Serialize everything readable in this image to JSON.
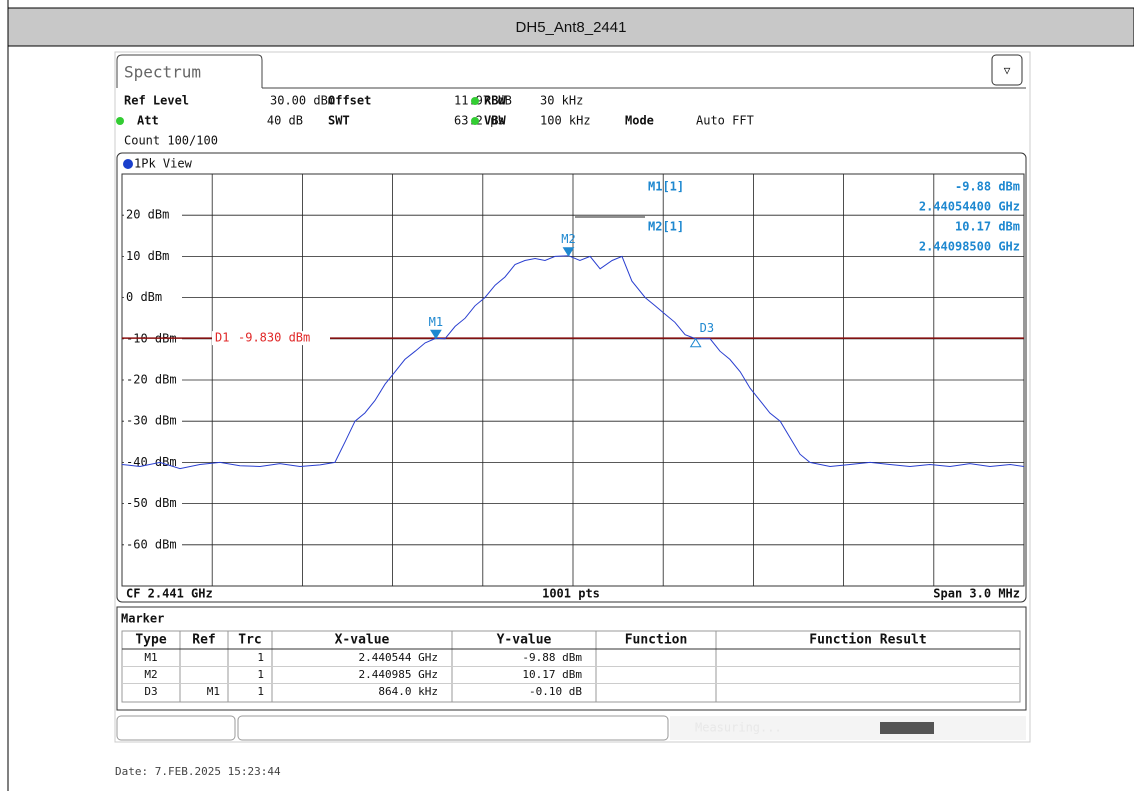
{
  "header": {
    "title": "DH5_Ant8_2441"
  },
  "tab": "Spectrum",
  "settings": [
    [
      "Ref Level",
      "30.00 dBm"
    ],
    [
      "Offset",
      "11.97 dB"
    ],
    [
      "RBW",
      "30 kHz"
    ],
    [
      "Att",
      "40 dB"
    ],
    [
      "SWT",
      "63.2 µs"
    ],
    [
      "VBW",
      "100 kHz"
    ],
    [
      "Mode",
      "Auto FFT"
    ]
  ],
  "count": "Count 100/100",
  "view": "1Pk View",
  "readout": [
    [
      "M1[1]",
      "-9.88 dBm",
      "2.44054400 GHz"
    ],
    [
      "M2[1]",
      "10.17 dBm",
      "2.44098500 GHz"
    ]
  ],
  "chart_data": {
    "type": "line",
    "color": "#2a3fd0",
    "xlim": [
      2.4395,
      2.4425
    ],
    "ylim": [
      -70,
      30
    ],
    "yticks": [
      {
        "value": 20,
        "label": "20 dBm"
      },
      {
        "value": 10,
        "label": "10 dBm"
      },
      {
        "value": 0,
        "label": "0 dBm"
      },
      {
        "value": -10,
        "label": "-10 dBm"
      },
      {
        "value": -20,
        "label": "-20 dBm"
      },
      {
        "value": -30,
        "label": "-30 dBm"
      },
      {
        "value": -40,
        "label": "-40 dBm"
      },
      {
        "value": -50,
        "label": "-50 dBm"
      },
      {
        "value": -60,
        "label": "-60 dBm"
      }
    ],
    "grid": true,
    "x": [
      2.4395,
      2.43956,
      2.439626,
      2.439693,
      2.439759,
      2.439826,
      2.439892,
      2.439959,
      2.440025,
      2.440092,
      2.440159,
      2.440208,
      2.440242,
      2.440275,
      2.440308,
      2.440341,
      2.440375,
      2.440408,
      2.440441,
      2.440475,
      2.440508,
      2.440544,
      2.440574,
      2.440608,
      2.440641,
      2.440674,
      2.440707,
      2.440741,
      2.440774,
      2.440807,
      2.44084,
      2.440874,
      2.440907,
      2.44094,
      2.440985,
      2.441023,
      2.441057,
      2.44109,
      2.44113,
      2.441163,
      2.441196,
      2.44124,
      2.441273,
      2.441306,
      2.441339,
      2.441373,
      2.441408,
      2.441456,
      2.441489,
      2.441522,
      2.441556,
      2.441589,
      2.441622,
      2.441655,
      2.441689,
      2.441722,
      2.441755,
      2.441788,
      2.441855,
      2.441921,
      2.441988,
      2.442054,
      2.442121,
      2.442187,
      2.442254,
      2.44232,
      2.442387,
      2.442454,
      2.4425
    ],
    "y": [
      -40.5,
      -41,
      -40,
      -41.5,
      -40.5,
      -40,
      -40.8,
      -41,
      -40.3,
      -41,
      -40.6,
      -40,
      -35,
      -30,
      -28,
      -25,
      -21,
      -18,
      -15,
      -13,
      -11,
      -9.88,
      -10,
      -7,
      -5,
      -2,
      0,
      3,
      5,
      8,
      9,
      9.5,
      9,
      10,
      10.17,
      9,
      10,
      7,
      9,
      10,
      4,
      0,
      -2,
      -4,
      -6,
      -9,
      -9.98,
      -10,
      -13,
      -15,
      -18,
      -22,
      -25,
      -28,
      -30,
      -34,
      -38,
      -40,
      -41,
      -40.5,
      -40,
      -40.5,
      -41,
      -40.5,
      -41,
      -40.3,
      -41,
      -40.5,
      -41
    ],
    "markers": [
      {
        "label": "M1",
        "x": 2.440544,
        "y": -9.88
      },
      {
        "label": "M2",
        "x": 2.440985,
        "y": 10.17
      },
      {
        "label": "D3",
        "x": 2.441408,
        "y": -9.98
      }
    ],
    "display_line": {
      "name": "D1",
      "label": "-9.830 dBm",
      "value": -9.83
    },
    "footer": [
      "CF 2.441 GHz",
      "1001 pts",
      "Span 3.0 MHz"
    ]
  },
  "table": {
    "title": "Marker",
    "columns": [
      "Type",
      "Ref",
      "Trc",
      "X-value",
      "Y-value",
      "Function",
      "Function Result"
    ],
    "rows": [
      [
        "M1",
        "",
        "1",
        "2.440544 GHz",
        "-9.88 dBm",
        "",
        ""
      ],
      [
        "M2",
        "",
        "1",
        "2.440985 GHz",
        "10.17 dBm",
        "",
        ""
      ],
      [
        "D3",
        "M1",
        "1",
        "864.0 kHz",
        "-0.10 dB",
        "",
        ""
      ]
    ]
  },
  "status": "Measuring...",
  "date": "Date: 7.FEB.2025  15:23:44"
}
